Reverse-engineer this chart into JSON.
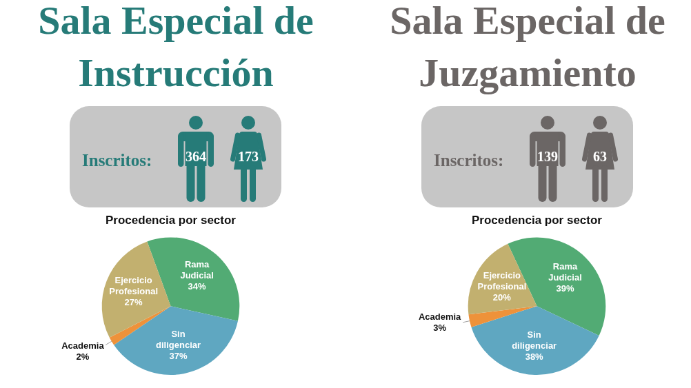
{
  "chart_data": [
    {
      "type": "other",
      "title": "Sala Especial de Instrucción",
      "color": "#267b78",
      "annotations": [
        "Inscritos:"
      ],
      "categories": [
        null,
        null
      ],
      "values": [
        364,
        173
      ],
      "data_labels": true
    },
    {
      "type": "pie",
      "title": "Procedencia por sector",
      "categories": [
        "Rama Judicial",
        "Sin diligenciar",
        "Academia",
        "Ejercicio Profesional"
      ],
      "values": [
        34,
        37,
        2,
        27
      ],
      "colors": [
        "#52ab74",
        "#5fa7c1",
        "#ee923a",
        "#c2b06f"
      ],
      "value_labels": [
        "34%",
        "37%",
        "2%",
        "27%"
      ]
    },
    {
      "type": "other",
      "title": "Sala Especial de Juzgamiento",
      "color": "#6b6665",
      "annotations": [
        "Inscritos:"
      ],
      "categories": [
        null,
        null
      ],
      "values": [
        139,
        63
      ],
      "data_labels": true
    },
    {
      "type": "pie",
      "title": "Procedencia por sector",
      "categories": [
        "Rama Judicial",
        "Sin diligenciar",
        "Academia",
        "Ejercicio Profesional"
      ],
      "values": [
        39,
        38,
        3,
        20
      ],
      "colors": [
        "#52ab74",
        "#5fa7c1",
        "#ee923a",
        "#c2b06f"
      ],
      "value_labels": [
        "39%",
        "38%",
        "3%",
        "20%"
      ]
    }
  ]
}
